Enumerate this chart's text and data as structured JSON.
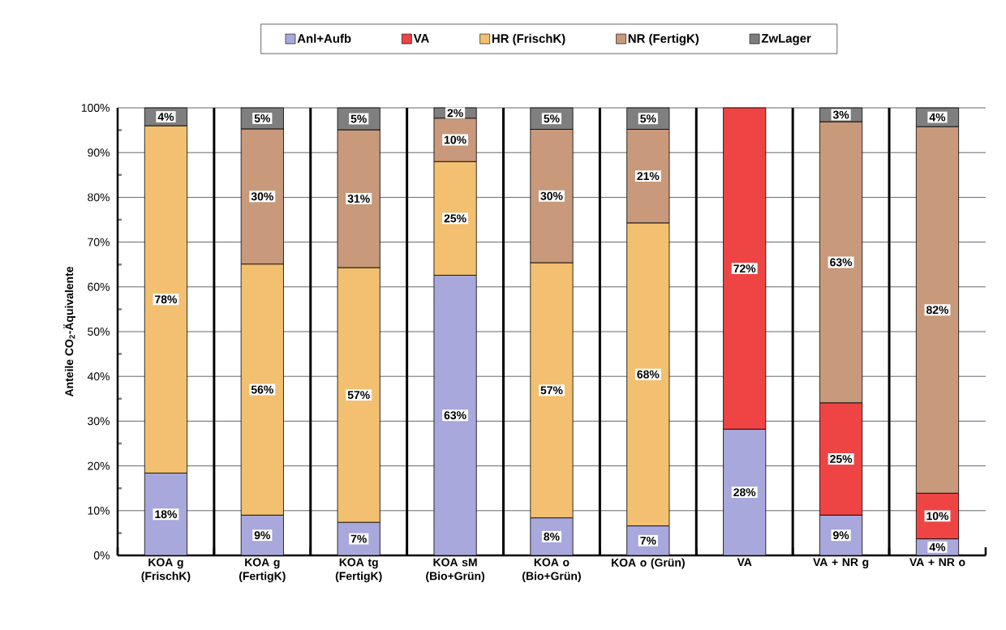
{
  "chart_data": {
    "type": "bar",
    "stacked": true,
    "ylabel": "Anteile CO$_{2}$-Äquivalente",
    "categories": [
      "KOA g (FrischK)",
      "KOA g (FertigK)",
      "KOA tg (FertigK)",
      "KOA sM (Bio+Grün)",
      "KOA o (Bio+Grün)",
      "KOA o (Grün)",
      "VA",
      "VA + NR g",
      "VA + NR o"
    ],
    "series": [
      {
        "name": "Anl+Aufb",
        "color": "#a8a8dc",
        "values": [
          18.4,
          9,
          7.4,
          62.6,
          8.4,
          6.6,
          28.2,
          9,
          3.7
        ],
        "value_labels": [
          "18%",
          "9%",
          "7%",
          "63%",
          "8%",
          "7%",
          "28%",
          "9%",
          "4%"
        ]
      },
      {
        "name": "VA",
        "color": "#ee4444",
        "values": [
          null,
          null,
          null,
          null,
          null,
          null,
          71.8,
          25.1,
          10.2
        ],
        "value_labels": [
          null,
          null,
          null,
          null,
          null,
          null,
          "72%",
          "25%",
          "10%"
        ]
      },
      {
        "name": "HR (FrischK)",
        "color": "#f2c070",
        "values": [
          77.6,
          56.1,
          56.9,
          25.4,
          57,
          67.7,
          null,
          null,
          null
        ],
        "value_labels": [
          "78%",
          "56%",
          "57%",
          "25%",
          "57%",
          "68%",
          null,
          null,
          null
        ]
      },
      {
        "name": "NR (FertigK)",
        "color": "#c8997a",
        "values": [
          null,
          30.2,
          30.8,
          9.7,
          29.8,
          20.9,
          null,
          62.8,
          81.9
        ],
        "value_labels": [
          null,
          "30%",
          "31%",
          "10%",
          "30%",
          "21%",
          null,
          "63%",
          "82%"
        ]
      },
      {
        "name": "ZwLager",
        "color": "#7f7f7f",
        "values": [
          4,
          4.7,
          4.9,
          2.3,
          4.8,
          4.8,
          null,
          3.1,
          4.2
        ],
        "value_labels": [
          "4%",
          "5%",
          "5%",
          "2%",
          "5%",
          "5%",
          null,
          "3%",
          "4%"
        ]
      }
    ],
    "ylim": [
      0,
      100
    ],
    "yticks": [
      {
        "value": 0,
        "label": "0%"
      },
      {
        "value": 10,
        "label": "10%"
      },
      {
        "value": 20,
        "label": "20%"
      },
      {
        "value": 30,
        "label": "30%"
      },
      {
        "value": 40,
        "label": "40%"
      },
      {
        "value": 50,
        "label": "50%"
      },
      {
        "value": 60,
        "label": "60%"
      },
      {
        "value": 70,
        "label": "70%"
      },
      {
        "value": 80,
        "label": "80%"
      },
      {
        "value": 90,
        "label": "90%"
      },
      {
        "value": 100,
        "label": "100%"
      }
    ],
    "grid": true,
    "legend": "top"
  }
}
